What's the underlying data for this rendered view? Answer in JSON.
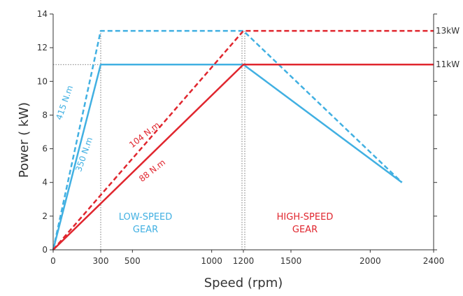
{
  "chart_data": {
    "type": "line",
    "xlabel": "Speed (rpm)",
    "ylabel": "Power ( kW)",
    "xlim": [
      0,
      2400
    ],
    "ylim": [
      0,
      14
    ],
    "x_ticks": [
      0,
      300,
      500,
      1000,
      1200,
      1500,
      2000,
      2400
    ],
    "y_ticks": [
      0,
      2,
      4,
      6,
      8,
      10,
      12,
      14
    ],
    "grid": false,
    "colors": {
      "low_speed": "#41b0e2",
      "high_speed": "#e0262e",
      "guide": "#555555"
    },
    "series": [
      {
        "gear": "low",
        "style": "solid",
        "x": [
          0,
          300,
          1200,
          2200
        ],
        "y": [
          0,
          11,
          11,
          4
        ]
      },
      {
        "gear": "low",
        "style": "dashed",
        "x": [
          0,
          300,
          1200,
          2200
        ],
        "y": [
          0,
          13,
          13,
          4
        ]
      },
      {
        "gear": "high",
        "style": "solid",
        "x": [
          0,
          1200,
          2400
        ],
        "y": [
          0,
          11,
          11
        ]
      },
      {
        "gear": "high",
        "style": "dashed",
        "x": [
          0,
          1200,
          2400
        ],
        "y": [
          0,
          13,
          13
        ]
      }
    ],
    "torque_labels": [
      {
        "text": "415 N.m",
        "color": "#41b0e2"
      },
      {
        "text": "350 N.m",
        "color": "#41b0e2"
      },
      {
        "text": "104 N.m",
        "color": "#e0262e"
      },
      {
        "text": "88 N.m",
        "color": "#e0262e"
      }
    ],
    "region_labels": [
      {
        "lines": [
          "LOW-SPEED",
          "GEAR"
        ],
        "color": "#41b0e2"
      },
      {
        "lines": [
          "HIGH-SPEED",
          "GEAR"
        ],
        "color": "#e0262e"
      }
    ],
    "end_labels": [
      {
        "text": "13kW",
        "y": 13
      },
      {
        "text": "11kW",
        "y": 11
      }
    ]
  }
}
